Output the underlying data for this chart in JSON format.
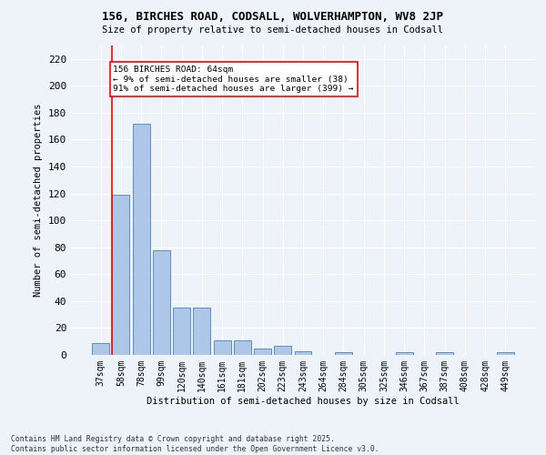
{
  "title_line1": "156, BIRCHES ROAD, CODSALL, WOLVERHAMPTON, WV8 2JP",
  "title_line2": "Size of property relative to semi-detached houses in Codsall",
  "xlabel": "Distribution of semi-detached houses by size in Codsall",
  "ylabel": "Number of semi-detached properties",
  "categories": [
    "37sqm",
    "58sqm",
    "78sqm",
    "99sqm",
    "120sqm",
    "140sqm",
    "161sqm",
    "181sqm",
    "202sqm",
    "223sqm",
    "243sqm",
    "264sqm",
    "284sqm",
    "305sqm",
    "325sqm",
    "346sqm",
    "367sqm",
    "387sqm",
    "408sqm",
    "428sqm",
    "449sqm"
  ],
  "values": [
    9,
    119,
    172,
    78,
    35,
    35,
    11,
    11,
    5,
    7,
    3,
    0,
    2,
    0,
    0,
    2,
    0,
    2,
    0,
    0,
    2
  ],
  "bar_color": "#aec6e8",
  "bar_edge_color": "#5a8fc2",
  "vline_color": "red",
  "annotation_title": "156 BIRCHES ROAD: 64sqm",
  "annotation_line1": "← 9% of semi-detached houses are smaller (38)",
  "annotation_line2": "91% of semi-detached houses are larger (399) →",
  "annotation_box_color": "white",
  "annotation_box_edge": "red",
  "ylim": [
    0,
    230
  ],
  "yticks": [
    0,
    20,
    40,
    60,
    80,
    100,
    120,
    140,
    160,
    180,
    200,
    220
  ],
  "footer_line1": "Contains HM Land Registry data © Crown copyright and database right 2025.",
  "footer_line2": "Contains public sector information licensed under the Open Government Licence v3.0.",
  "bg_color": "#eef2f9"
}
